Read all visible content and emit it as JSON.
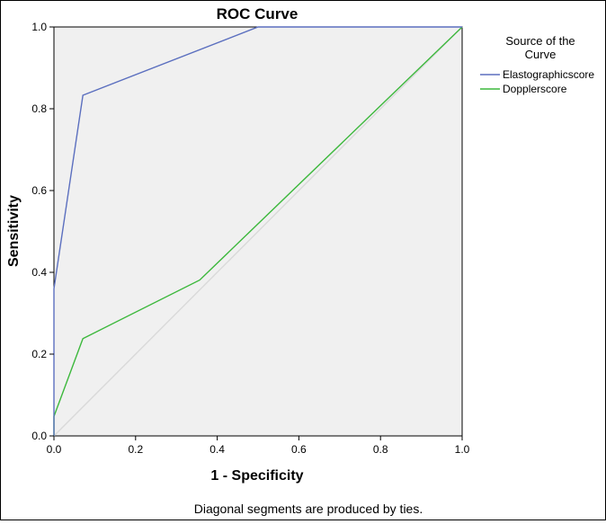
{
  "chart_data": {
    "type": "line",
    "title": "ROC Curve",
    "xlabel": "1 - Specificity",
    "ylabel": "Sensitivity",
    "xlim": [
      0,
      1
    ],
    "ylim": [
      0,
      1
    ],
    "xticks": [
      "0.0",
      "0.2",
      "0.4",
      "0.6",
      "0.8",
      "1.0"
    ],
    "yticks": [
      "0.0",
      "0.2",
      "0.4",
      "0.6",
      "0.8",
      "1.0"
    ],
    "grid": false,
    "legend": {
      "title": "Source of the Curve",
      "placement": "top-right",
      "entries": [
        "Elastographicscore",
        "Dopplerscore"
      ]
    },
    "footnote": "Diagonal segments are produced by ties.",
    "series": [
      {
        "name": "Elastographicscore",
        "color": "#5b6fbf",
        "x": [
          0,
          0,
          0.071,
          0.5,
          1.0
        ],
        "y": [
          0,
          0.36,
          0.833,
          1.0,
          1.0
        ]
      },
      {
        "name": "Dopplerscore",
        "color": "#3cb83c",
        "x": [
          0,
          0,
          0.071,
          0.357,
          1.0
        ],
        "y": [
          0,
          0.048,
          0.238,
          0.381,
          1.0
        ]
      },
      {
        "name": "Reference Line",
        "color": "#d9d9d9",
        "x": [
          0,
          1
        ],
        "y": [
          0,
          1
        ]
      }
    ]
  }
}
